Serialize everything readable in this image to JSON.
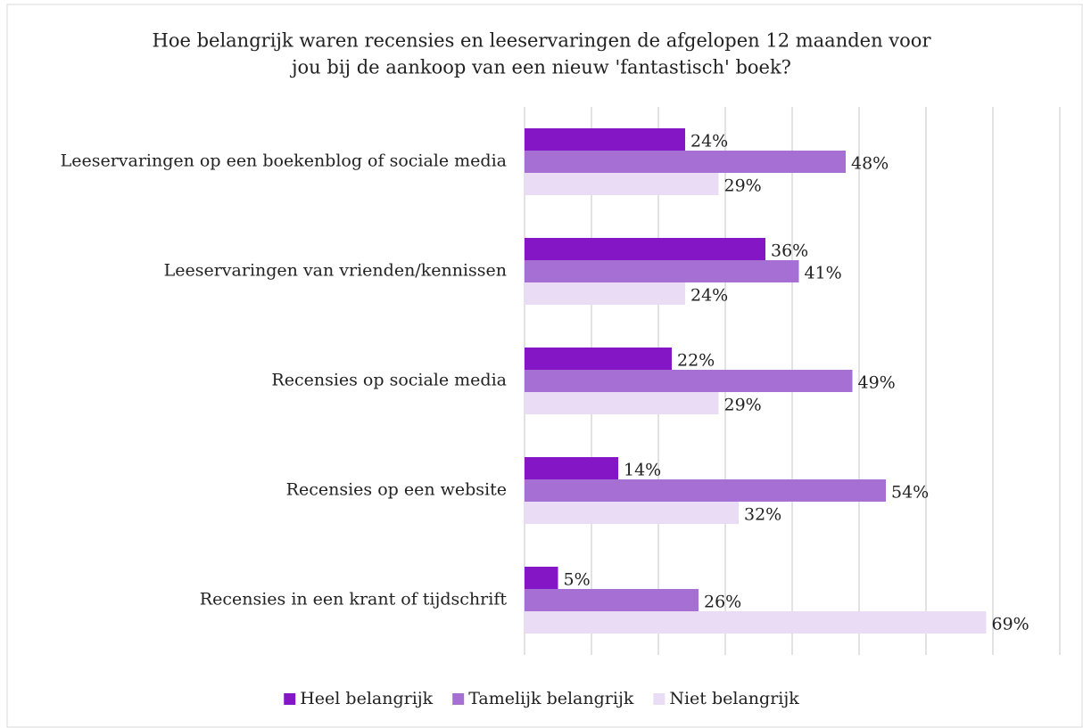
{
  "chart_data": {
    "type": "barh",
    "title": [
      "Hoe belangrijk waren recensies en leeservaringen de afgelopen 12 maanden voor",
      "jou bij de aankoop van een nieuw 'fantastisch' boek?"
    ],
    "categories": [
      "Leeservaringen op een boekenblog of sociale media",
      "Leeservaringen van vrienden/kennissen",
      "Recensies op sociale media",
      "Recensies op een website",
      "Recensies in een krant of tijdschrift"
    ],
    "series": [
      {
        "name": "Heel belangrijk",
        "color": "#8516c6",
        "values": [
          24,
          36,
          22,
          14,
          5
        ],
        "value_labels": [
          "24%",
          "36%",
          "22%",
          "14%",
          "5%"
        ]
      },
      {
        "name": "Tamelijk belangrijk",
        "color": "#a56fd4",
        "values": [
          48,
          41,
          49,
          54,
          26
        ],
        "value_labels": [
          "48%",
          "41%",
          "49%",
          "54%",
          "26%"
        ]
      },
      {
        "name": "Niet belangrijk",
        "color": "#ebdcf5",
        "values": [
          29,
          24,
          29,
          32,
          69
        ],
        "value_labels": [
          "29%",
          "24%",
          "29%",
          "32%",
          "69%"
        ]
      }
    ],
    "xlim": [
      0,
      80
    ],
    "xticks": [
      0,
      10,
      20,
      30,
      40,
      50,
      60,
      70,
      80
    ],
    "grid": true,
    "legend": "bottom"
  }
}
